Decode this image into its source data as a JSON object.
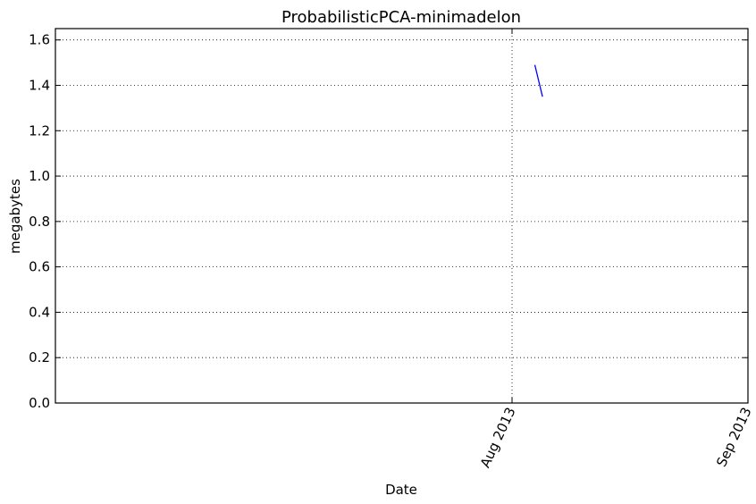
{
  "chart_data": {
    "type": "line",
    "title": "ProbabilisticPCA-minimadelon",
    "xlabel": "Date",
    "ylabel": "megabytes",
    "ylim": [
      0,
      1.65
    ],
    "xlim": [
      "2013-06-02",
      "2013-09-01"
    ],
    "y_ticks": [
      0.0,
      0.2,
      0.4,
      0.6,
      0.8,
      1.0,
      1.2,
      1.4,
      1.6
    ],
    "y_tick_labels": [
      "0.0",
      "0.2",
      "0.4",
      "0.6",
      "0.8",
      "1.0",
      "1.2",
      "1.4",
      "1.6"
    ],
    "x_ticks": [
      "2013-08-01",
      "2013-09-01"
    ],
    "x_tick_labels": [
      "Aug 2013",
      "Sep 2013"
    ],
    "grid": true,
    "series": [
      {
        "color": "#0000ff",
        "x": [
          "2013-08-04",
          "2013-08-05"
        ],
        "y": [
          1.49,
          1.35
        ]
      }
    ]
  }
}
